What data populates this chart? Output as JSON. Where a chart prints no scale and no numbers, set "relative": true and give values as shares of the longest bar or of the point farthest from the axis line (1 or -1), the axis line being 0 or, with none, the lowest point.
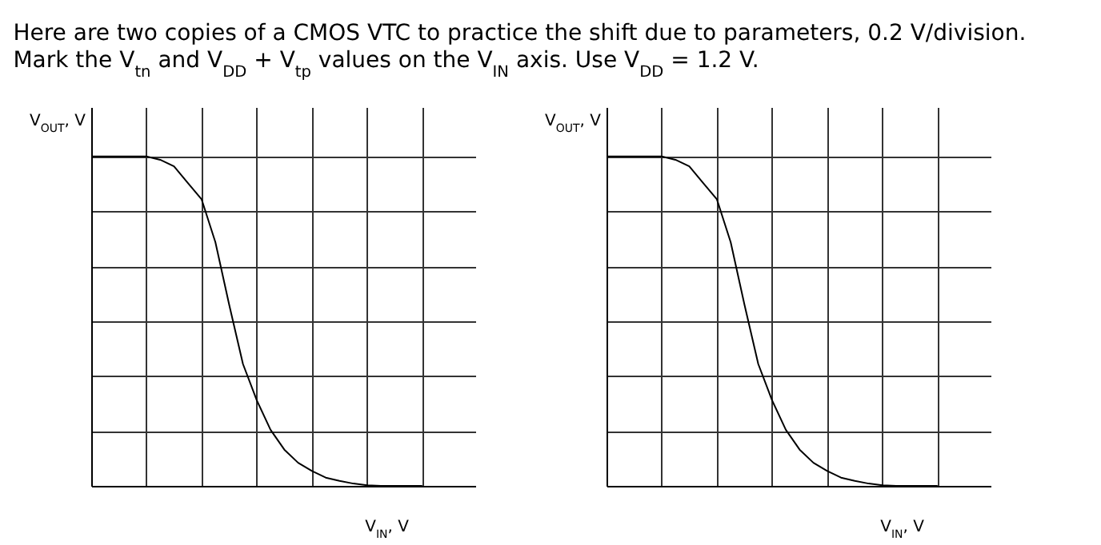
{
  "chart_data": [
    {
      "type": "line",
      "title": "Here are two copies of a CMOS VTC to practice the shift due to parameters, 0.2 V/division.\nMark the V$_{tn}$ and V$_{DD}$ + V$_{tp}$ values on the V$_{IN}$ axis. Use V$_{DD}$ = 1.2 V.",
      "xlabel": "V$_{IN}$, V",
      "ylabel": "V$_{OUT}$, V",
      "relative": true,
      "grid": true,
      "tick_labels": false,
      "categories": [
        null,
        null,
        null,
        null,
        null,
        null,
        null,
        null,
        null,
        null,
        null,
        null,
        null,
        null,
        null,
        null,
        null,
        null,
        null,
        null,
        null,
        null,
        null,
        null,
        null
      ],
      "series": [
        {
          "color": "#000000",
          "values": [
            1,
            1,
            1,
            1,
            1,
            0.99,
            0.97,
            0.92,
            0.87,
            0.74,
            0.55,
            0.37,
            0.26,
            0.17,
            0.11,
            0.07,
            0.045,
            0.025,
            0.015,
            0.007,
            0.002,
            0,
            0,
            0,
            0
          ]
        }
      ]
    },
    {
      "type": "line",
      "xlabel": "V$_{IN}$, V",
      "ylabel": "V$_{OUT}$, V",
      "relative": true,
      "grid": true,
      "tick_labels": false,
      "categories": [
        null,
        null,
        null,
        null,
        null,
        null,
        null,
        null,
        null,
        null,
        null,
        null,
        null,
        null,
        null,
        null,
        null,
        null,
        null,
        null,
        null,
        null,
        null,
        null,
        null
      ],
      "series": [
        {
          "color": "#000000",
          "values": [
            1,
            1,
            1,
            1,
            1,
            0.99,
            0.97,
            0.92,
            0.87,
            0.74,
            0.55,
            0.37,
            0.26,
            0.17,
            0.11,
            0.07,
            0.045,
            0.025,
            0.015,
            0.007,
            0.002,
            0,
            0,
            0,
            0
          ]
        }
      ]
    }
  ]
}
